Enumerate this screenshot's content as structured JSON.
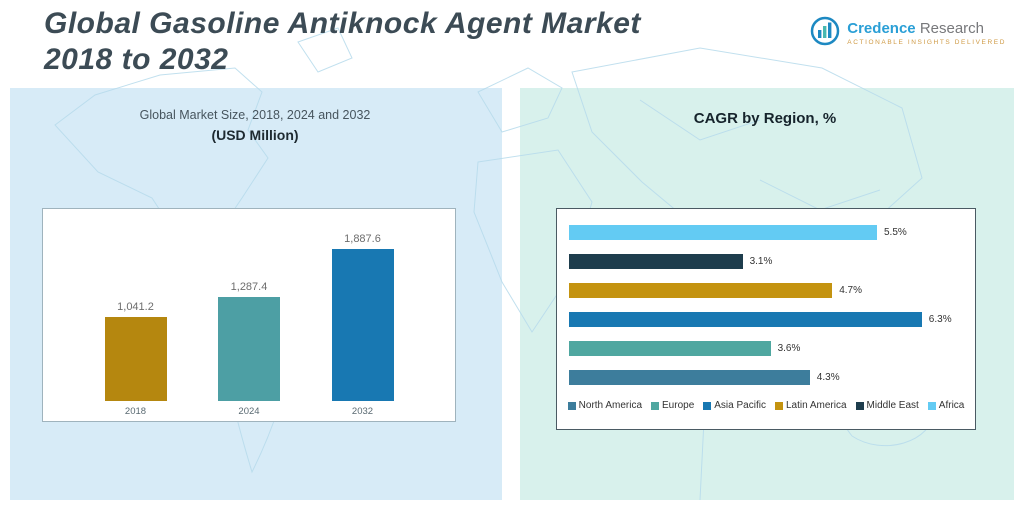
{
  "header": {
    "title_line1": "Global Gasoline Antiknock Agent Market",
    "title_line2": "2018 to 2032"
  },
  "logo": {
    "brand_primary": "Credence",
    "brand_secondary": "Research",
    "tagline": "Actionable Insights Delivered",
    "icon": "bar-chart-circle-icon"
  },
  "chart_data": [
    {
      "type": "bar",
      "orientation": "vertical",
      "title": "Global Market Size, 2018, 2024 and 2032",
      "subtitle": "(USD Million)",
      "categories": [
        "2018",
        "2024",
        "2032"
      ],
      "values": [
        1041.2,
        1287.4,
        1887.6
      ],
      "value_labels": [
        "1,041.2",
        "1,287.4",
        "1,887.6"
      ],
      "bar_colors": [
        "#b5870f",
        "#4d9fa4",
        "#1878b2"
      ],
      "ylabel": "",
      "xlabel": "",
      "ylim": [
        0,
        2000
      ],
      "grid": false,
      "legend_position": "none"
    },
    {
      "type": "bar",
      "orientation": "horizontal",
      "title": "CAGR by Region, %",
      "categories": [
        "Africa",
        "Middle East",
        "Latin America",
        "Asia Pacific",
        "Europe",
        "North America"
      ],
      "values": [
        5.5,
        3.1,
        4.7,
        6.3,
        3.6,
        4.3
      ],
      "value_labels": [
        "5.5%",
        "3.1%",
        "4.7%",
        "6.3%",
        "3.6%",
        "4.3%"
      ],
      "bar_colors": [
        "#63cbf3",
        "#1e3d4d",
        "#c49310",
        "#1878b2",
        "#4fa7a0",
        "#3d7d9c"
      ],
      "xlim": [
        0,
        7
      ],
      "grid": false,
      "legend_position": "bottom",
      "legend_order": [
        "North America",
        "Europe",
        "Asia Pacific",
        "Latin America",
        "Middle East",
        "Africa"
      ],
      "legend_colors": [
        "#3d7d9c",
        "#4fa7a0",
        "#1878b2",
        "#c49310",
        "#1e3d4d",
        "#63cbf3"
      ]
    }
  ]
}
